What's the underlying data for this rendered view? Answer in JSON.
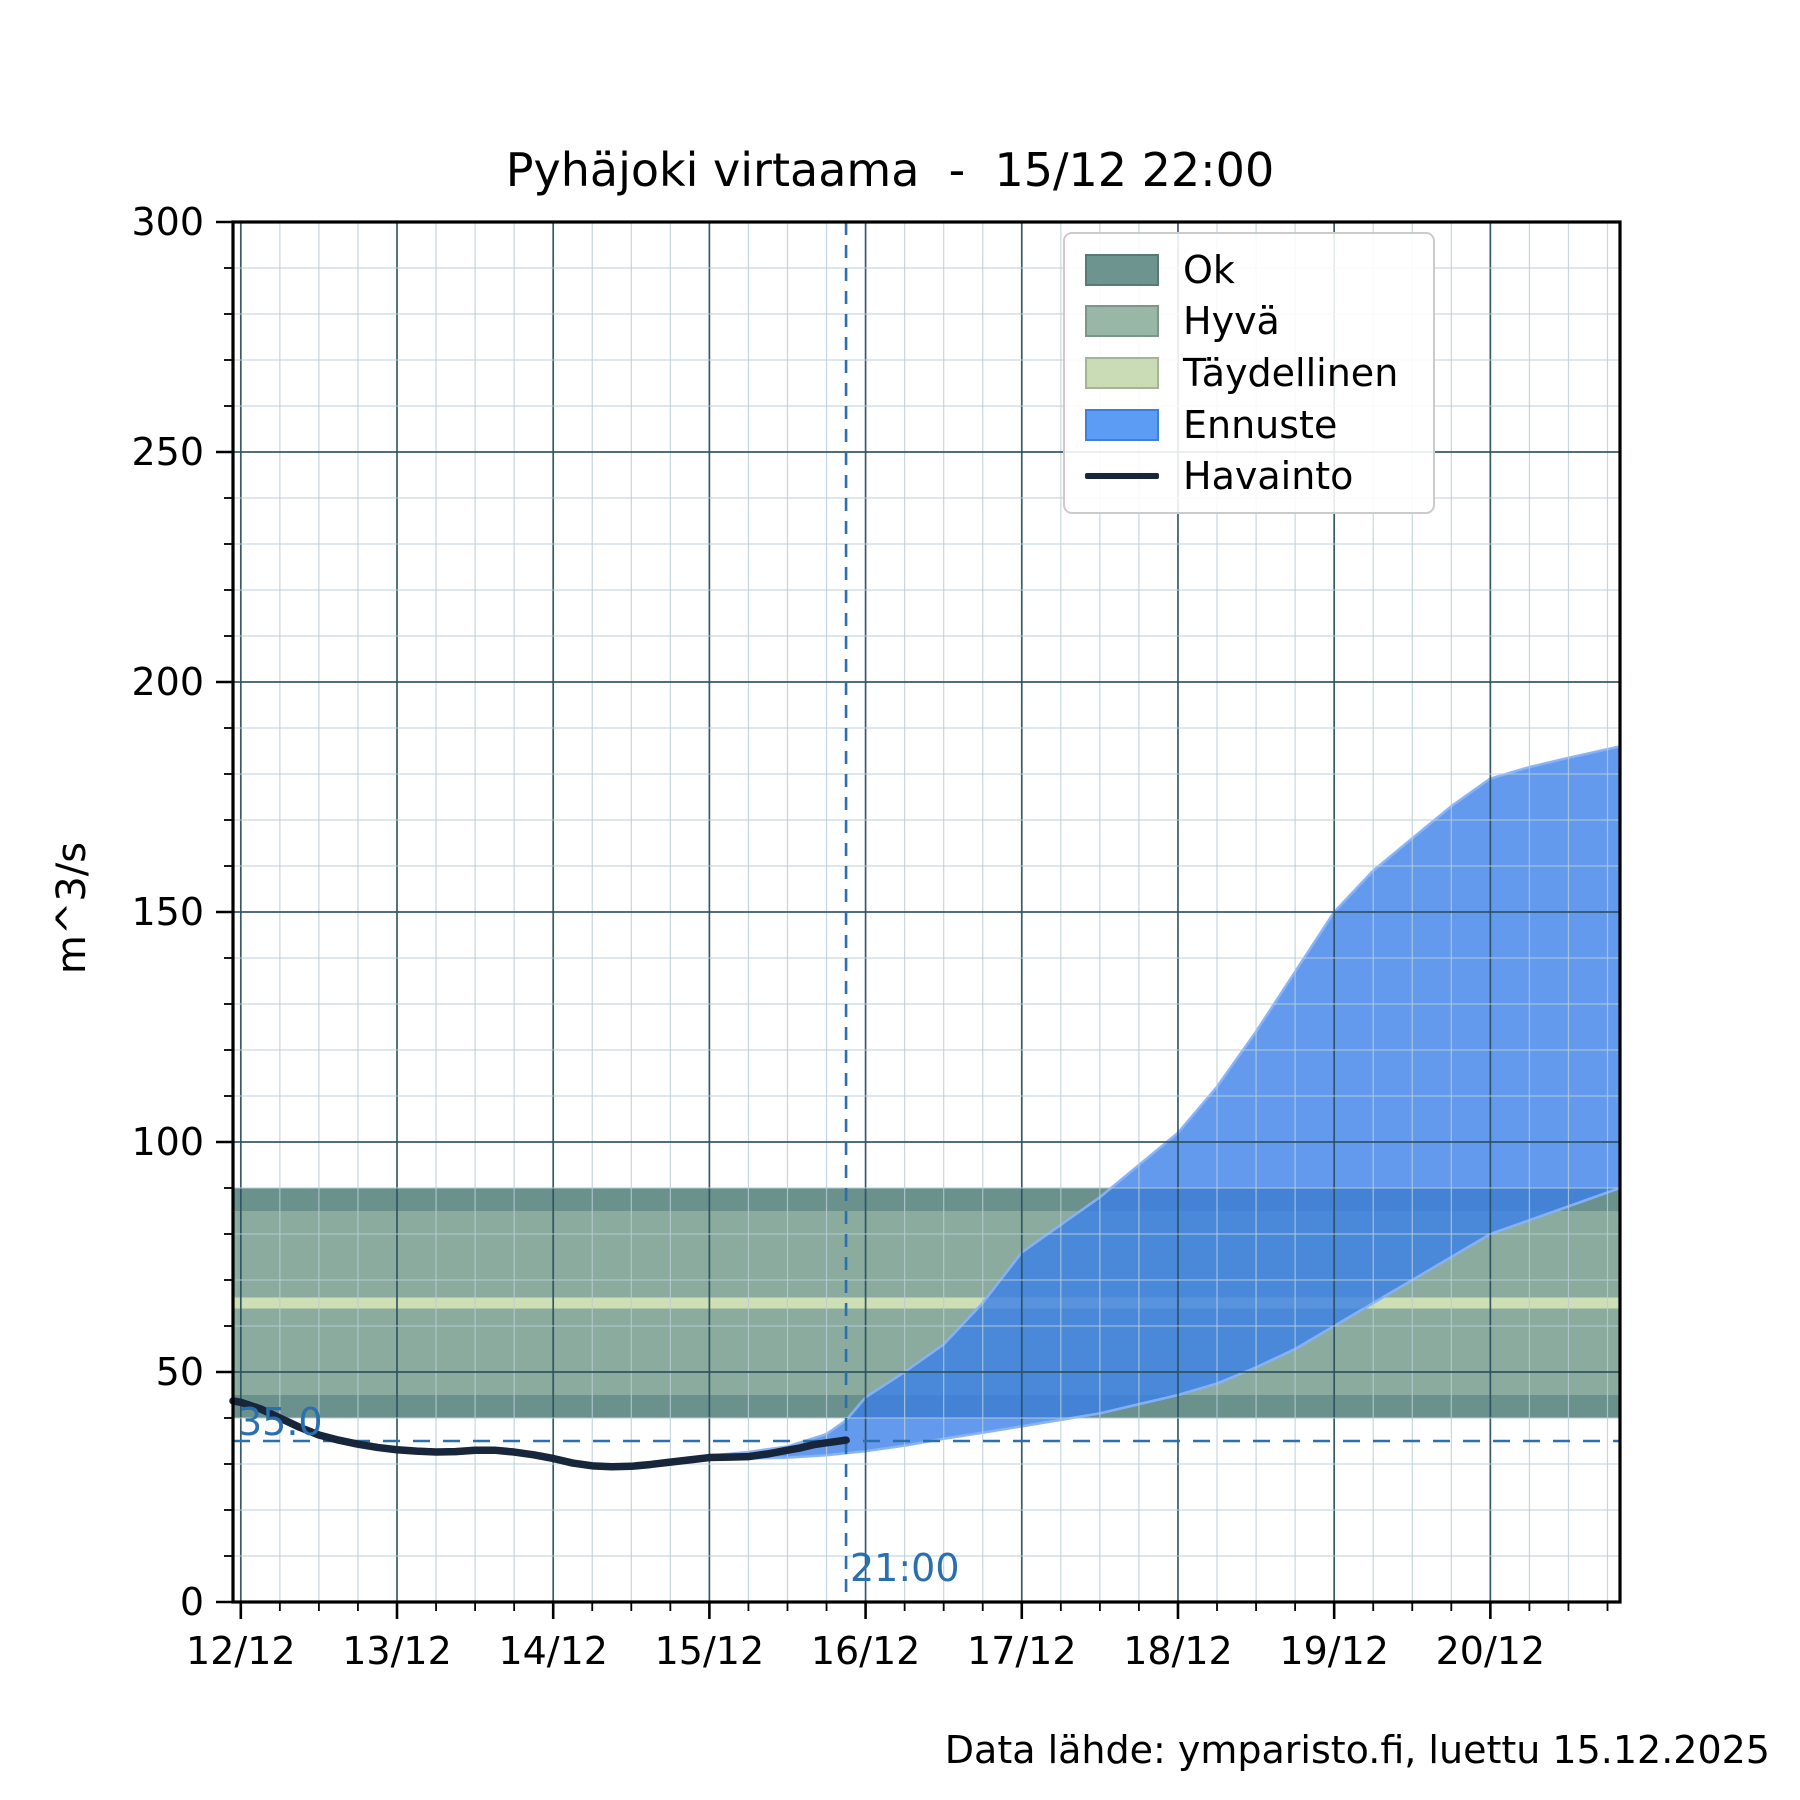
{
  "header": {
    "title": "Pyhäjoki virtaama  -  15/12 22:00"
  },
  "footer": {
    "text": "Data lähde: ymparisto.fi, luettu 15.12.2025"
  },
  "chart_data": {
    "type": "area",
    "title": "Pyhäjoki virtaama  -  15/12 22:00",
    "xlabel": "",
    "ylabel": "m^3/s",
    "ylim": [
      0,
      300
    ],
    "xlim_days_from_12_12": [
      -0.05,
      8.83
    ],
    "grid": true,
    "legend_position": "upper right",
    "y_major_ticks": [
      0,
      50,
      100,
      150,
      200,
      250,
      300
    ],
    "y_minor_step": 10,
    "x_tick_labels": [
      "12/12",
      "13/12",
      "14/12",
      "15/12",
      "16/12",
      "17/12",
      "18/12",
      "19/12",
      "20/12"
    ],
    "x_tick_days": [
      0,
      1,
      2,
      3,
      4,
      5,
      6,
      7,
      8
    ],
    "x_minor_step_days": 0.25,
    "bands": [
      {
        "name": "Ok",
        "from": 40,
        "to": 90,
        "color": "#6a918c"
      },
      {
        "name": "Hyvä",
        "from": 45,
        "to": 85,
        "color": "#8aab9e"
      },
      {
        "name": "Täydellinen",
        "from": 63.8,
        "to": 66.2,
        "color": "#cedfb6"
      }
    ],
    "forecast": {
      "name": "Ennuste",
      "fill": "rgba(56,126,233,0.78)",
      "edge": "rgba(134,178,248,0.95)",
      "upper": [
        [
          3.0,
          31.8
        ],
        [
          3.25,
          32.6
        ],
        [
          3.5,
          33.8
        ],
        [
          3.75,
          36.5
        ],
        [
          3.875,
          39.5
        ],
        [
          4.0,
          44.5
        ],
        [
          4.25,
          50
        ],
        [
          4.5,
          56
        ],
        [
          4.75,
          65
        ],
        [
          5.0,
          76
        ],
        [
          5.25,
          82
        ],
        [
          5.5,
          88
        ],
        [
          5.75,
          95
        ],
        [
          6.0,
          102
        ],
        [
          6.25,
          112
        ],
        [
          6.5,
          124
        ],
        [
          6.75,
          137
        ],
        [
          7.0,
          150
        ],
        [
          7.25,
          159
        ],
        [
          7.5,
          166
        ],
        [
          7.75,
          173
        ],
        [
          8.0,
          179
        ],
        [
          8.25,
          181.5
        ],
        [
          8.5,
          183.5
        ],
        [
          8.83,
          186
        ]
      ],
      "lower": [
        [
          3.0,
          31.0
        ],
        [
          3.25,
          31.2
        ],
        [
          3.5,
          31.4
        ],
        [
          3.75,
          31.9
        ],
        [
          4.0,
          32.8
        ],
        [
          4.25,
          34.0
        ],
        [
          4.5,
          35.5
        ],
        [
          4.75,
          36.8
        ],
        [
          5.0,
          38.2
        ],
        [
          5.25,
          39.6
        ],
        [
          5.5,
          41.0
        ],
        [
          5.75,
          43.0
        ],
        [
          6.0,
          45.0
        ],
        [
          6.25,
          47.5
        ],
        [
          6.5,
          51.0
        ],
        [
          6.75,
          55.0
        ],
        [
          7.0,
          60.0
        ],
        [
          7.25,
          65.0
        ],
        [
          7.5,
          70.0
        ],
        [
          7.75,
          75.0
        ],
        [
          8.0,
          80.0
        ],
        [
          8.25,
          83.0
        ],
        [
          8.5,
          86.0
        ],
        [
          8.83,
          90.0
        ]
      ]
    },
    "observation": {
      "name": "Havainto",
      "color": "#18263b",
      "points": [
        [
          -0.05,
          43.7
        ],
        [
          0,
          43.4
        ],
        [
          0.125,
          42.0
        ],
        [
          0.25,
          40.0
        ],
        [
          0.375,
          38.0
        ],
        [
          0.5,
          36.3
        ],
        [
          0.625,
          35.2
        ],
        [
          0.75,
          34.3
        ],
        [
          0.875,
          33.6
        ],
        [
          1.0,
          33.1
        ],
        [
          1.125,
          32.8
        ],
        [
          1.25,
          32.6
        ],
        [
          1.375,
          32.7
        ],
        [
          1.5,
          33.0
        ],
        [
          1.625,
          33.0
        ],
        [
          1.75,
          32.6
        ],
        [
          1.875,
          32.0
        ],
        [
          2.0,
          31.2
        ],
        [
          2.125,
          30.2
        ],
        [
          2.25,
          29.6
        ],
        [
          2.375,
          29.4
        ],
        [
          2.5,
          29.5
        ],
        [
          2.625,
          29.9
        ],
        [
          2.75,
          30.4
        ],
        [
          2.875,
          30.9
        ],
        [
          3.0,
          31.4
        ],
        [
          3.125,
          31.5
        ],
        [
          3.25,
          31.6
        ],
        [
          3.375,
          32.2
        ],
        [
          3.5,
          33.0
        ],
        [
          3.583,
          33.5
        ],
        [
          3.667,
          34.2
        ],
        [
          3.75,
          34.6
        ],
        [
          3.792,
          34.8
        ],
        [
          3.875,
          35.2
        ]
      ]
    },
    "annotations": {
      "hline": {
        "value": 35.0,
        "label": "35.0",
        "color": "#2a6fae"
      },
      "vline": {
        "day": 3.875,
        "label": "21:00",
        "color": "#2a6fae"
      }
    },
    "legend": {
      "items": [
        {
          "label": "Ok",
          "swatch": "#6d948f",
          "kind": "patch"
        },
        {
          "label": "Hyvä",
          "swatch": "#98b7a6",
          "kind": "patch"
        },
        {
          "label": "Täydellinen",
          "swatch": "#c9dcb6",
          "kind": "patch"
        },
        {
          "label": "Ennuste",
          "swatch": "#5d9cf5",
          "kind": "patch",
          "edge": "#3f7fd9"
        },
        {
          "label": "Havainto",
          "swatch": "#18263b",
          "kind": "line"
        }
      ]
    },
    "colors": {
      "grid_major": "#2c5260",
      "grid_minor": "#b9cdd6",
      "spine": "#000000"
    }
  }
}
